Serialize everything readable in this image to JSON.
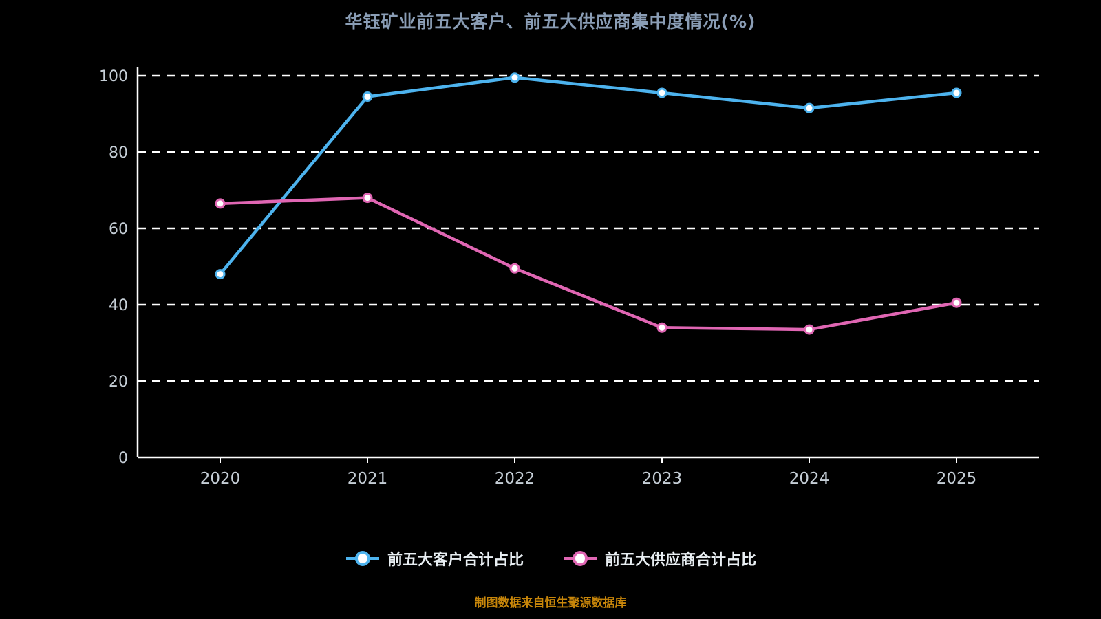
{
  "title": "华钰矿业前五大客户、前五大供应商集中度情况(%)",
  "title_color": "#8a9db5",
  "source_note": "制图数据来自恒生聚源数据库",
  "source_color": "#c8860a",
  "legend": {
    "items": [
      {
        "label": "前五大客户合计占比",
        "color": "#4db3ee"
      },
      {
        "label": "前五大供应商合计占比",
        "color": "#e066b3"
      }
    ]
  },
  "chart_data": {
    "type": "line",
    "title": "华钰矿业前五大客户、前五大供应商集中度情况(%)",
    "categories": [
      "2020",
      "2021",
      "2022",
      "2023",
      "2024",
      "2025"
    ],
    "series": [
      {
        "name": "前五大客户合计占比",
        "color": "#4db3ee",
        "values": [
          48,
          94.5,
          99.5,
          95.5,
          91.5,
          95.5
        ]
      },
      {
        "name": "前五大供应商合计占比",
        "color": "#e066b3",
        "values": [
          66.5,
          68,
          49.5,
          34,
          33.5,
          40.5
        ]
      }
    ],
    "xlabel": "",
    "ylabel": "",
    "ylim": [
      0,
      100
    ],
    "yticks": [
      0,
      20,
      40,
      60,
      80,
      100
    ],
    "grid": "dashed-horizontal",
    "legend_position": "bottom",
    "background": "#000000",
    "axis_color": "#ffffff",
    "tick_label_color": "#c5ced6"
  }
}
